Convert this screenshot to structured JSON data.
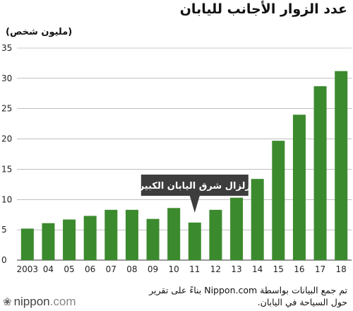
{
  "title": "عدد الزوار الأجانب لليابان",
  "logo": {
    "name": "nippon",
    "dot_com": ".com",
    "mark_icon": "nippon-crest-icon"
  },
  "source_note": "تم جمع البيانات بواسطة Nippon.com بناءً على تقرير حول السياحة في اليابان.",
  "colors": {
    "bar": "#3c8a2e",
    "annotation_box": "#3d3d3d",
    "annotation_text": "#ffffff",
    "grid": "#999999"
  },
  "chart_data": {
    "type": "bar",
    "title": "عدد الزوار الأجانب لليابان",
    "ylabel": "(مليون شخص)",
    "xlabel": "",
    "categories": [
      "2003",
      "04",
      "05",
      "06",
      "07",
      "08",
      "09",
      "10",
      "11",
      "12",
      "13",
      "14",
      "15",
      "16",
      "17",
      "18"
    ],
    "values": [
      5.2,
      6.1,
      6.7,
      7.3,
      8.3,
      8.3,
      6.8,
      8.6,
      6.2,
      8.3,
      10.3,
      13.4,
      19.7,
      24.0,
      28.7,
      31.2
    ],
    "ylim": [
      0,
      35
    ],
    "yticks": [
      0,
      5,
      10,
      15,
      20,
      25,
      30,
      35
    ],
    "grid": true,
    "annotations": [
      {
        "text": "زلزال شرق اليابان الكبير",
        "category": "11"
      }
    ]
  }
}
